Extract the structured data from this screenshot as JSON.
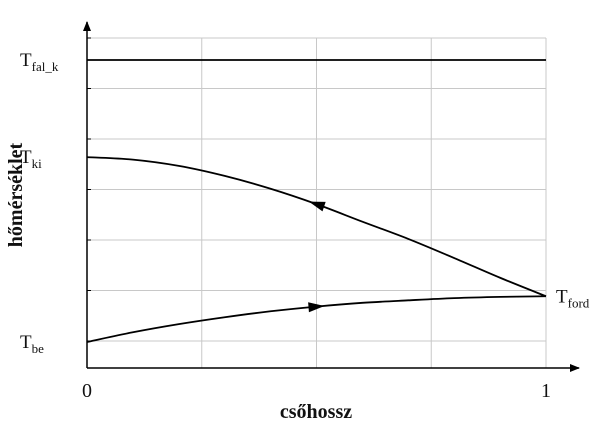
{
  "chart_data": {
    "type": "line",
    "xlabel": "csőhossz",
    "ylabel": "hőmérséklet",
    "xlim": [
      0,
      1
    ],
    "ylim": [
      0,
      1
    ],
    "grid": true,
    "x_ticks": [
      {
        "value": 0,
        "label": "0"
      },
      {
        "value": 1,
        "label": "1"
      }
    ],
    "y_ticks": [
      {
        "value": 0.1,
        "main": "T",
        "sub": "be"
      },
      {
        "value": 0.69,
        "main": "T",
        "sub": "ki"
      },
      {
        "value": 1.0,
        "main": "T",
        "sub": "fal_k"
      }
    ],
    "annotations": [
      {
        "main": "T",
        "sub": "ford",
        "x": 1.0,
        "y": 0.246
      }
    ],
    "series": [
      {
        "id": "wall",
        "x": [
          0,
          1
        ],
        "y": [
          1.0,
          1.0
        ]
      },
      {
        "id": "inflow",
        "direction": "right",
        "x": [
          0,
          0.1,
          0.2,
          0.3,
          0.4,
          0.5,
          0.6,
          0.7,
          0.8,
          0.9,
          1.0
        ],
        "y": [
          0.1,
          0.131,
          0.157,
          0.179,
          0.198,
          0.213,
          0.225,
          0.233,
          0.24,
          0.244,
          0.246
        ]
      },
      {
        "id": "outflow",
        "direction": "left",
        "x": [
          0,
          0.1,
          0.2,
          0.3,
          0.4,
          0.5,
          0.6,
          0.7,
          0.8,
          0.9,
          1.0
        ],
        "y": [
          0.69,
          0.682,
          0.662,
          0.63,
          0.589,
          0.54,
          0.484,
          0.429,
          0.368,
          0.305,
          0.246
        ]
      }
    ]
  }
}
